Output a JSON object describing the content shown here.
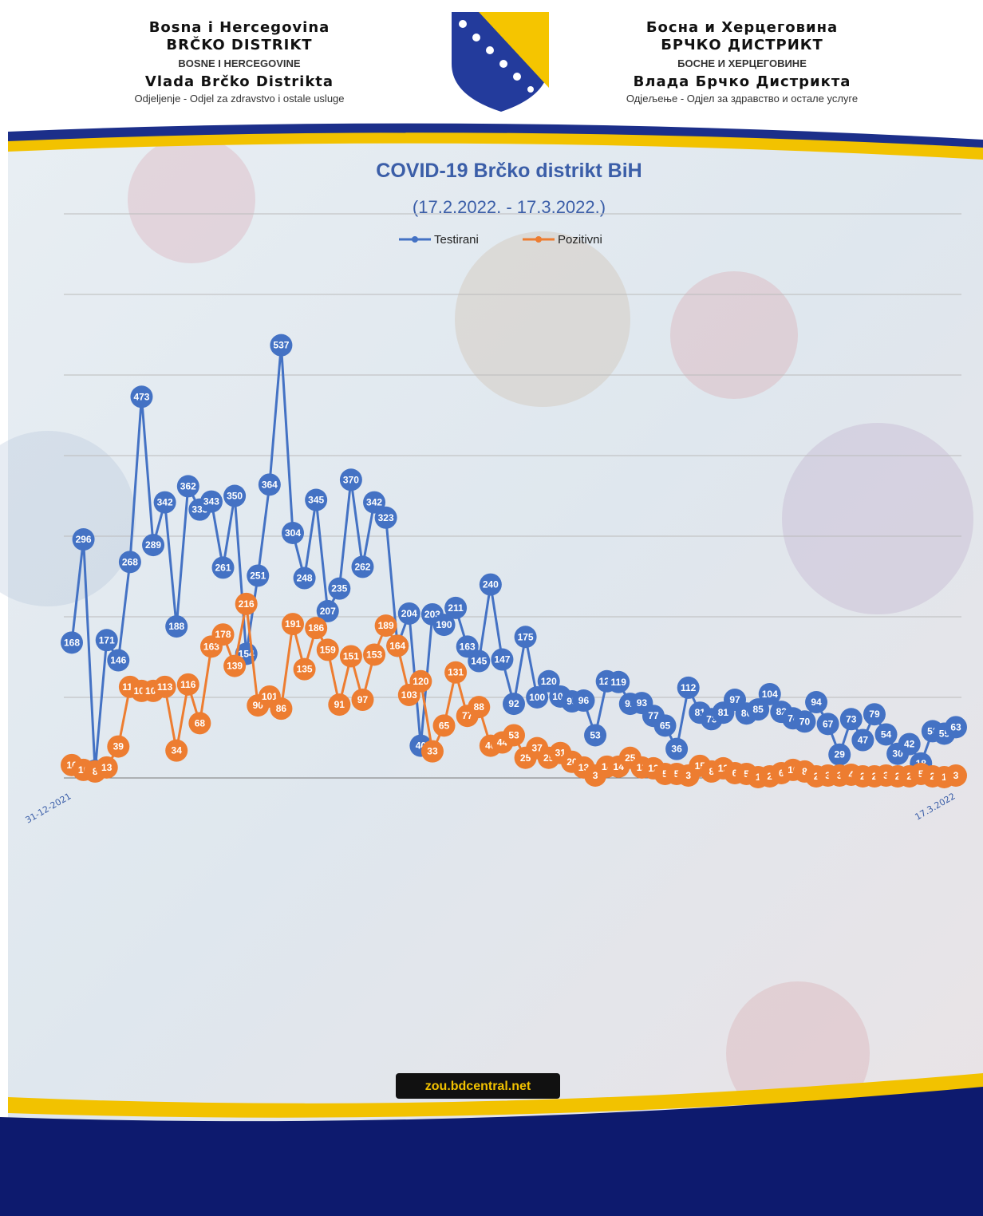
{
  "header": {
    "left": [
      "Bosna i Hercegovina",
      "BRČKO DISTRIKT",
      "BOSNE I HERCEGOVINE",
      "Vlada Brčko Distrikta",
      "Odjeljenje - Odjel za zdravstvo i ostale usluge"
    ],
    "right": [
      "Босна и Херцеговина",
      "БРЧКО ДИСТРИКТ",
      "БОСНЕ И ХЕРЦЕГОВИНЕ",
      "Влада Брчко Дистрикта",
      "Одјељење - Одјел за здравство и остале услуге"
    ]
  },
  "footer": {
    "url": "zou.bdcentral.net"
  },
  "chart_data": {
    "type": "line",
    "title": "COVID-19 Brčko distrikt BiH",
    "subtitle": "(17.2.2022. - 17.3.2022.)",
    "categories": [
      "31-12-2021",
      null,
      null,
      null,
      null,
      null,
      null,
      null,
      null,
      null,
      null,
      null,
      null,
      null,
      null,
      null,
      null,
      null,
      null,
      null,
      null,
      null,
      null,
      null,
      null,
      null,
      null,
      null,
      null,
      null,
      null,
      null,
      null,
      null,
      null,
      null,
      null,
      null,
      null,
      null,
      null,
      null,
      null,
      null,
      null,
      null,
      null,
      null,
      null,
      null,
      null,
      null,
      null,
      null,
      null,
      null,
      null,
      null,
      null,
      null,
      null,
      null,
      null,
      null,
      null,
      null,
      null,
      null,
      null,
      null,
      null,
      null,
      null,
      null,
      null,
      null,
      "17.3.2022"
    ],
    "series": [
      {
        "name": "Testirani",
        "color": "#4472c4",
        "values": [
          168,
          296,
          9,
          171,
          146,
          268,
          473,
          289,
          342,
          188,
          362,
          333,
          343,
          261,
          350,
          154,
          251,
          364,
          537,
          304,
          248,
          345,
          207,
          235,
          370,
          262,
          342,
          323,
          164,
          204,
          40,
          203,
          190,
          211,
          163,
          145,
          240,
          147,
          92,
          175,
          100,
          120,
          101,
          95,
          96,
          53,
          120,
          119,
          92,
          93,
          77,
          65,
          36,
          112,
          81,
          73,
          81,
          97,
          80,
          85,
          104,
          82,
          74,
          70,
          94,
          67,
          29,
          73,
          47,
          79,
          54,
          30,
          42,
          18,
          58,
          55,
          63
        ]
      },
      {
        "name": "Pozitivni",
        "color": "#ed7d31",
        "values": [
          16,
          10,
          8,
          13,
          39,
          113,
          108,
          108,
          113,
          34,
          116,
          68,
          163,
          178,
          139,
          216,
          90,
          101,
          86,
          191,
          135,
          186,
          159,
          91,
          151,
          97,
          153,
          189,
          164,
          103,
          120,
          33,
          65,
          131,
          77,
          88,
          40,
          44,
          53,
          25,
          37,
          25,
          31,
          20,
          13,
          3,
          14,
          14,
          25,
          13,
          12,
          5,
          5,
          3,
          15,
          8,
          12,
          6,
          5,
          1,
          2,
          6,
          10,
          8,
          2,
          3,
          3,
          4,
          2,
          2,
          3,
          2,
          2,
          5,
          2,
          1,
          3
        ]
      }
    ],
    "ylim": [
      0,
      700
    ],
    "yticks": [
      0,
      100,
      200,
      300,
      400,
      500,
      600,
      700
    ],
    "grid": true,
    "legend": "top"
  }
}
